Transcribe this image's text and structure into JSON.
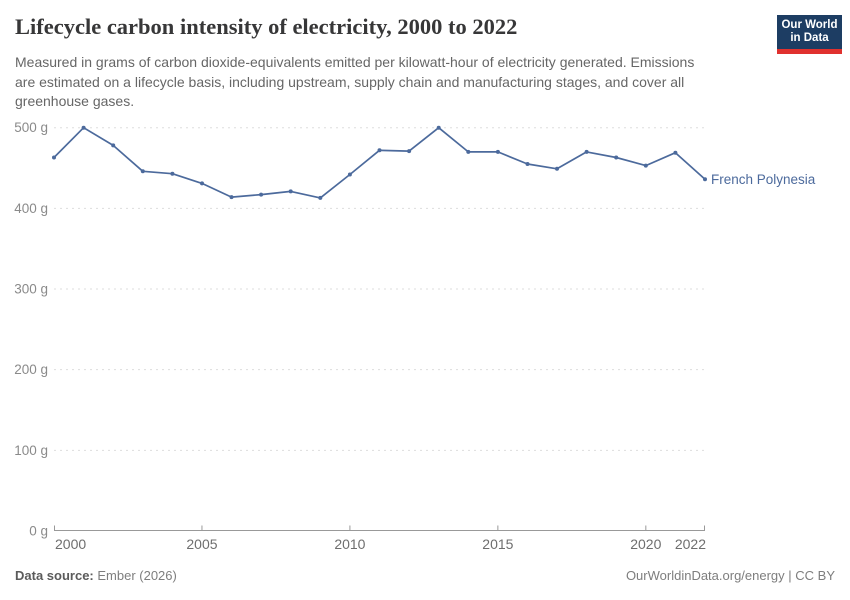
{
  "header": {
    "title": "Lifecycle carbon intensity of electricity, 2000 to 2022",
    "subtitle_lines": [
      "Measured in grams of carbon dioxide-equivalents emitted per kilowatt-hour of electricity generated. Emissions",
      "are estimated on a lifecycle basis, including upstream, supply chain and manufacturing stages, and cover all",
      "greenhouse gases."
    ],
    "logo": {
      "line1": "Our World",
      "line2": "in Data",
      "bg_color": "#1d3d63",
      "accent_color": "#e0312e"
    }
  },
  "chart_data": {
    "type": "line",
    "title": "Lifecycle carbon intensity of electricity, 2000 to 2022",
    "x": [
      2000,
      2001,
      2002,
      2003,
      2004,
      2005,
      2006,
      2007,
      2008,
      2009,
      2010,
      2011,
      2012,
      2013,
      2014,
      2015,
      2016,
      2017,
      2018,
      2019,
      2020,
      2021,
      2022
    ],
    "series": [
      {
        "name": "French Polynesia",
        "color": "#4C6A9C",
        "values": [
          463,
          500,
          478,
          446,
          443,
          431,
          414,
          417,
          421,
          413,
          442,
          472,
          471,
          500,
          470,
          470,
          455,
          449,
          470,
          463,
          453,
          469,
          436
        ]
      }
    ],
    "ylim": [
      0,
      500
    ],
    "yticks": [
      0,
      100,
      200,
      300,
      400,
      500
    ],
    "ytick_labels": [
      "0 g",
      "100 g",
      "200 g",
      "300 g",
      "400 g",
      "500 g"
    ],
    "xticks": [
      2000,
      2005,
      2010,
      2015,
      2020,
      2022
    ],
    "grid": "horizontal-dashed",
    "legend_position": "line-end-label",
    "grid_color": "#dddddd",
    "axis_color": "#999999"
  },
  "footer": {
    "source_label": "Data source:",
    "source_value": " Ember (2026)",
    "right_text": "OurWorldinData.org/energy | CC BY"
  }
}
